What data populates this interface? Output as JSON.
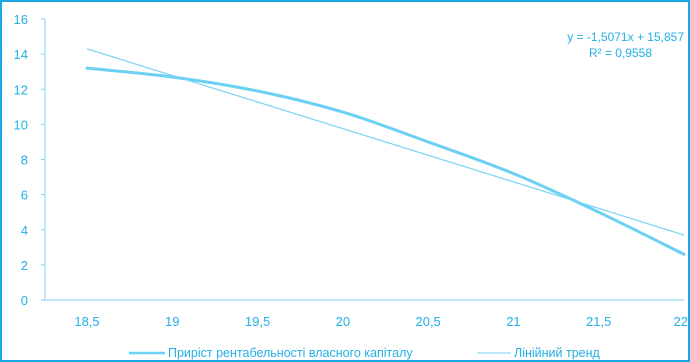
{
  "colors": {
    "frame": "#1aa7e3",
    "axis": "#7fd0f0",
    "text": "#22b0e6",
    "series": "#6cd0f4",
    "trend": "#79d3f5"
  },
  "chart_data": {
    "type": "line",
    "title": "",
    "xlabel": "",
    "ylabel": "",
    "xlim": [
      18.5,
      22
    ],
    "ylim": [
      0,
      16
    ],
    "grid": false,
    "legend_position": "bottom",
    "x_ticks": [
      "18,5",
      "19",
      "19,5",
      "20",
      "20,5",
      "21",
      "21,5",
      "22"
    ],
    "x_tick_values": [
      18.5,
      19,
      19.5,
      20,
      20.5,
      21,
      21.5,
      22
    ],
    "y_ticks": [
      "0",
      "2",
      "4",
      "6",
      "8",
      "10",
      "12",
      "14",
      "16"
    ],
    "y_tick_values": [
      0,
      2,
      4,
      6,
      8,
      10,
      12,
      14,
      16
    ],
    "series": [
      {
        "name": "Приріст рентабельності власного капіталу",
        "x": [
          18.5,
          19,
          19.5,
          20,
          20.5,
          21,
          21.5,
          22
        ],
        "y": [
          13.2,
          12.7,
          11.9,
          10.7,
          9.0,
          7.2,
          5.0,
          2.6
        ]
      },
      {
        "name": "Лінійний тренд",
        "x": [
          18.5,
          22
        ],
        "y": [
          14.3,
          3.7
        ]
      }
    ],
    "annotation": {
      "equation": "y = -1,5071x + 15,857",
      "r_squared": "R² = 0,9558"
    }
  }
}
